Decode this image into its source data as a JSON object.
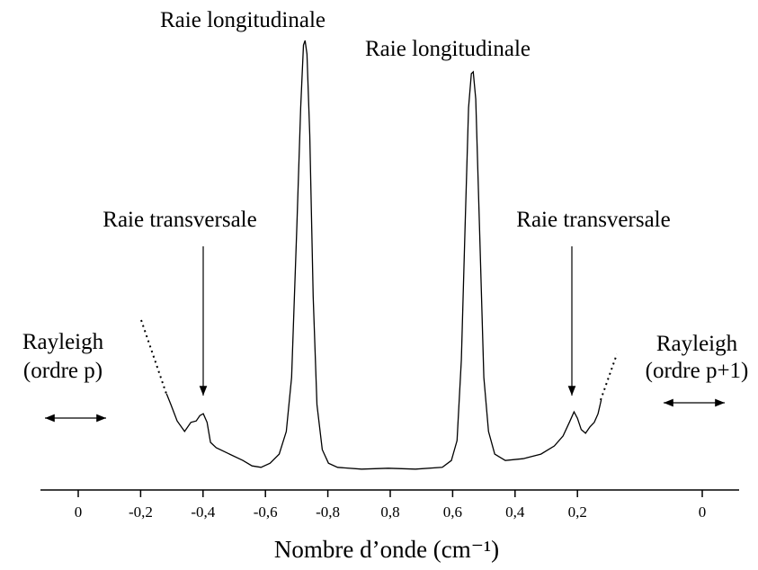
{
  "chart_data": {
    "type": "line",
    "xlabel": "Nombre d’onde (cm⁻¹)",
    "annotations": [
      "Raie longitudinale",
      "Raie longitudinale",
      "Raie transversale",
      "Raie transversale",
      "Rayleigh",
      "(ordre p)",
      "Rayleigh",
      "(ordre p+1)"
    ],
    "xticks": [
      0,
      {
        "value": -0.2,
        "label": "-0,2"
      },
      {
        "value": -0.4,
        "label": "-0,4"
      },
      {
        "value": -0.6,
        "label": "-0,6"
      },
      {
        "value": -0.8,
        "label": "-0,8"
      },
      {
        "value": 0.8,
        "label": "0,8"
      },
      {
        "value": 0.6,
        "label": "0,6"
      },
      {
        "value": 0.4,
        "label": "0,4"
      },
      {
        "value": 0.2,
        "label": "0,2"
      },
      0
    ],
    "ylim": [
      0,
      100
    ],
    "series": [
      {
        "color": "#000000",
        "x": [
          -0.283,
          -0.297,
          -0.317,
          -0.341,
          -0.361,
          -0.378,
          -0.39,
          -0.401,
          -0.413,
          -0.424,
          -0.442,
          -0.528,
          -0.557,
          -0.586,
          -0.615,
          -0.644,
          -0.667,
          -0.684,
          -0.701,
          -0.713,
          -0.722,
          -0.727,
          -0.733,
          -0.742,
          -0.753,
          -0.765,
          -0.782,
          -0.802,
          -0.831,
          0.892,
          0.806,
          0.719,
          0.633,
          0.604,
          0.586,
          0.572,
          0.56,
          0.549,
          0.54,
          0.534,
          0.526,
          0.514,
          0.5,
          0.485,
          0.465,
          0.431,
          0.374,
          0.317,
          0.274,
          0.246,
          0.226,
          0.211,
          0.2,
          0.194,
          0.187,
          0.18,
          0.173,
          0.167,
          0.162
        ],
        "values": [
          21.2,
          18.8,
          15.2,
          12.9,
          14.9,
          15.2,
          16.4,
          16.8,
          14.9,
          10.5,
          9.3,
          6.5,
          5.3,
          5.0,
          5.9,
          7.9,
          12.9,
          24.8,
          58.4,
          84.2,
          98.0,
          99.0,
          96.0,
          78.2,
          42.6,
          18.8,
          8.9,
          5.9,
          5.0,
          4.6,
          4.8,
          4.6,
          5.0,
          6.5,
          10.9,
          28.7,
          58.4,
          84.2,
          91.7,
          92.1,
          86.1,
          58.4,
          24.8,
          12.9,
          7.9,
          6.5,
          6.9,
          7.9,
          9.7,
          11.9,
          14.9,
          17.2,
          15.8,
          13.3,
          12.5,
          13.9,
          14.9,
          16.8,
          19.8
        ]
      }
    ]
  }
}
